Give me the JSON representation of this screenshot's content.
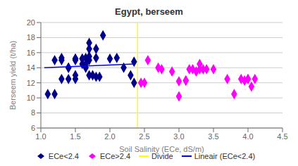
{
  "chart_data": {
    "type": "scatter",
    "title": "Egypt, berseem",
    "x_label": "Soil Salinity (ECe, dS/m)",
    "y_label": "Berseem yield (t/ha)",
    "xlim": [
      1.0,
      4.5
    ],
    "ylim": [
      6,
      20
    ],
    "xticks": [
      {
        "value": 1.0,
        "label": "1.0"
      },
      1.5,
      {
        "value": 2.0,
        "label": "2.0"
      },
      2.5,
      {
        "value": 3.0,
        "label": "3.0"
      },
      3.5,
      {
        "value": 4.0,
        "label": "4.0"
      },
      4.5
    ],
    "yticks": [
      6,
      8,
      10,
      12,
      14,
      16,
      18,
      20
    ],
    "grid": "y",
    "legend": "bottom",
    "series": [
      {
        "name": "ECe<2.4",
        "type": "scatter",
        "marker": "diamond",
        "color": "#00008B",
        "x": [
          1.1,
          1.2,
          1.2,
          1.3,
          1.3,
          1.3,
          1.4,
          1.4,
          1.4,
          1.5,
          1.5,
          1.5,
          1.5,
          1.5,
          1.6,
          1.6,
          1.6,
          1.65,
          1.65,
          1.65,
          1.7,
          1.7,
          1.7,
          1.7,
          1.7,
          1.75,
          1.8,
          1.8,
          1.8,
          1.85,
          1.9,
          2.0,
          2.1,
          2.2,
          2.3,
          2.35,
          2.35
        ],
        "values": [
          10.5,
          10.5,
          15.0,
          15.0,
          15.3,
          12.5,
          14.0,
          14.0,
          12.5,
          15.0,
          15.2,
          15.2,
          12.5,
          13.0,
          15.2,
          15.2,
          14.5,
          14.5,
          14.0,
          15.3,
          17.3,
          16.5,
          15.0,
          15.5,
          13.0,
          13.0,
          16.5,
          15.3,
          12.8,
          12.8,
          18.3,
          15.2,
          15.3,
          14.0,
          13.0,
          12.0,
          14.8
        ]
      },
      {
        "name": "ECe>2.4",
        "type": "scatter",
        "marker": "diamond",
        "color": "#FF00FF",
        "x": [
          2.45,
          2.5,
          2.55,
          2.7,
          2.75,
          2.9,
          3.0,
          3.0,
          3.1,
          3.1,
          3.15,
          3.2,
          3.25,
          3.3,
          3.3,
          3.35,
          3.4,
          3.5,
          3.7,
          3.8,
          3.9,
          3.95,
          4.0,
          4.0,
          4.05,
          4.1
        ],
        "values": [
          12.0,
          12.0,
          15.0,
          14.0,
          13.8,
          13.5,
          10.2,
          12.2,
          12.3,
          12.3,
          13.8,
          13.8,
          13.5,
          14.5,
          13.8,
          13.8,
          13.8,
          13.8,
          12.5,
          10.5,
          12.5,
          12.3,
          12.5,
          12.5,
          11.5,
          12.5
        ]
      },
      {
        "name": "Divide",
        "type": "vline",
        "color": "#FFFF00",
        "x": [
          2.4
        ]
      },
      {
        "name": "Lineair (ECe<2.4)",
        "type": "line",
        "color": "#0000FF",
        "x": [
          1.05,
          2.35
        ],
        "values": [
          14.0,
          14.5
        ]
      }
    ]
  }
}
